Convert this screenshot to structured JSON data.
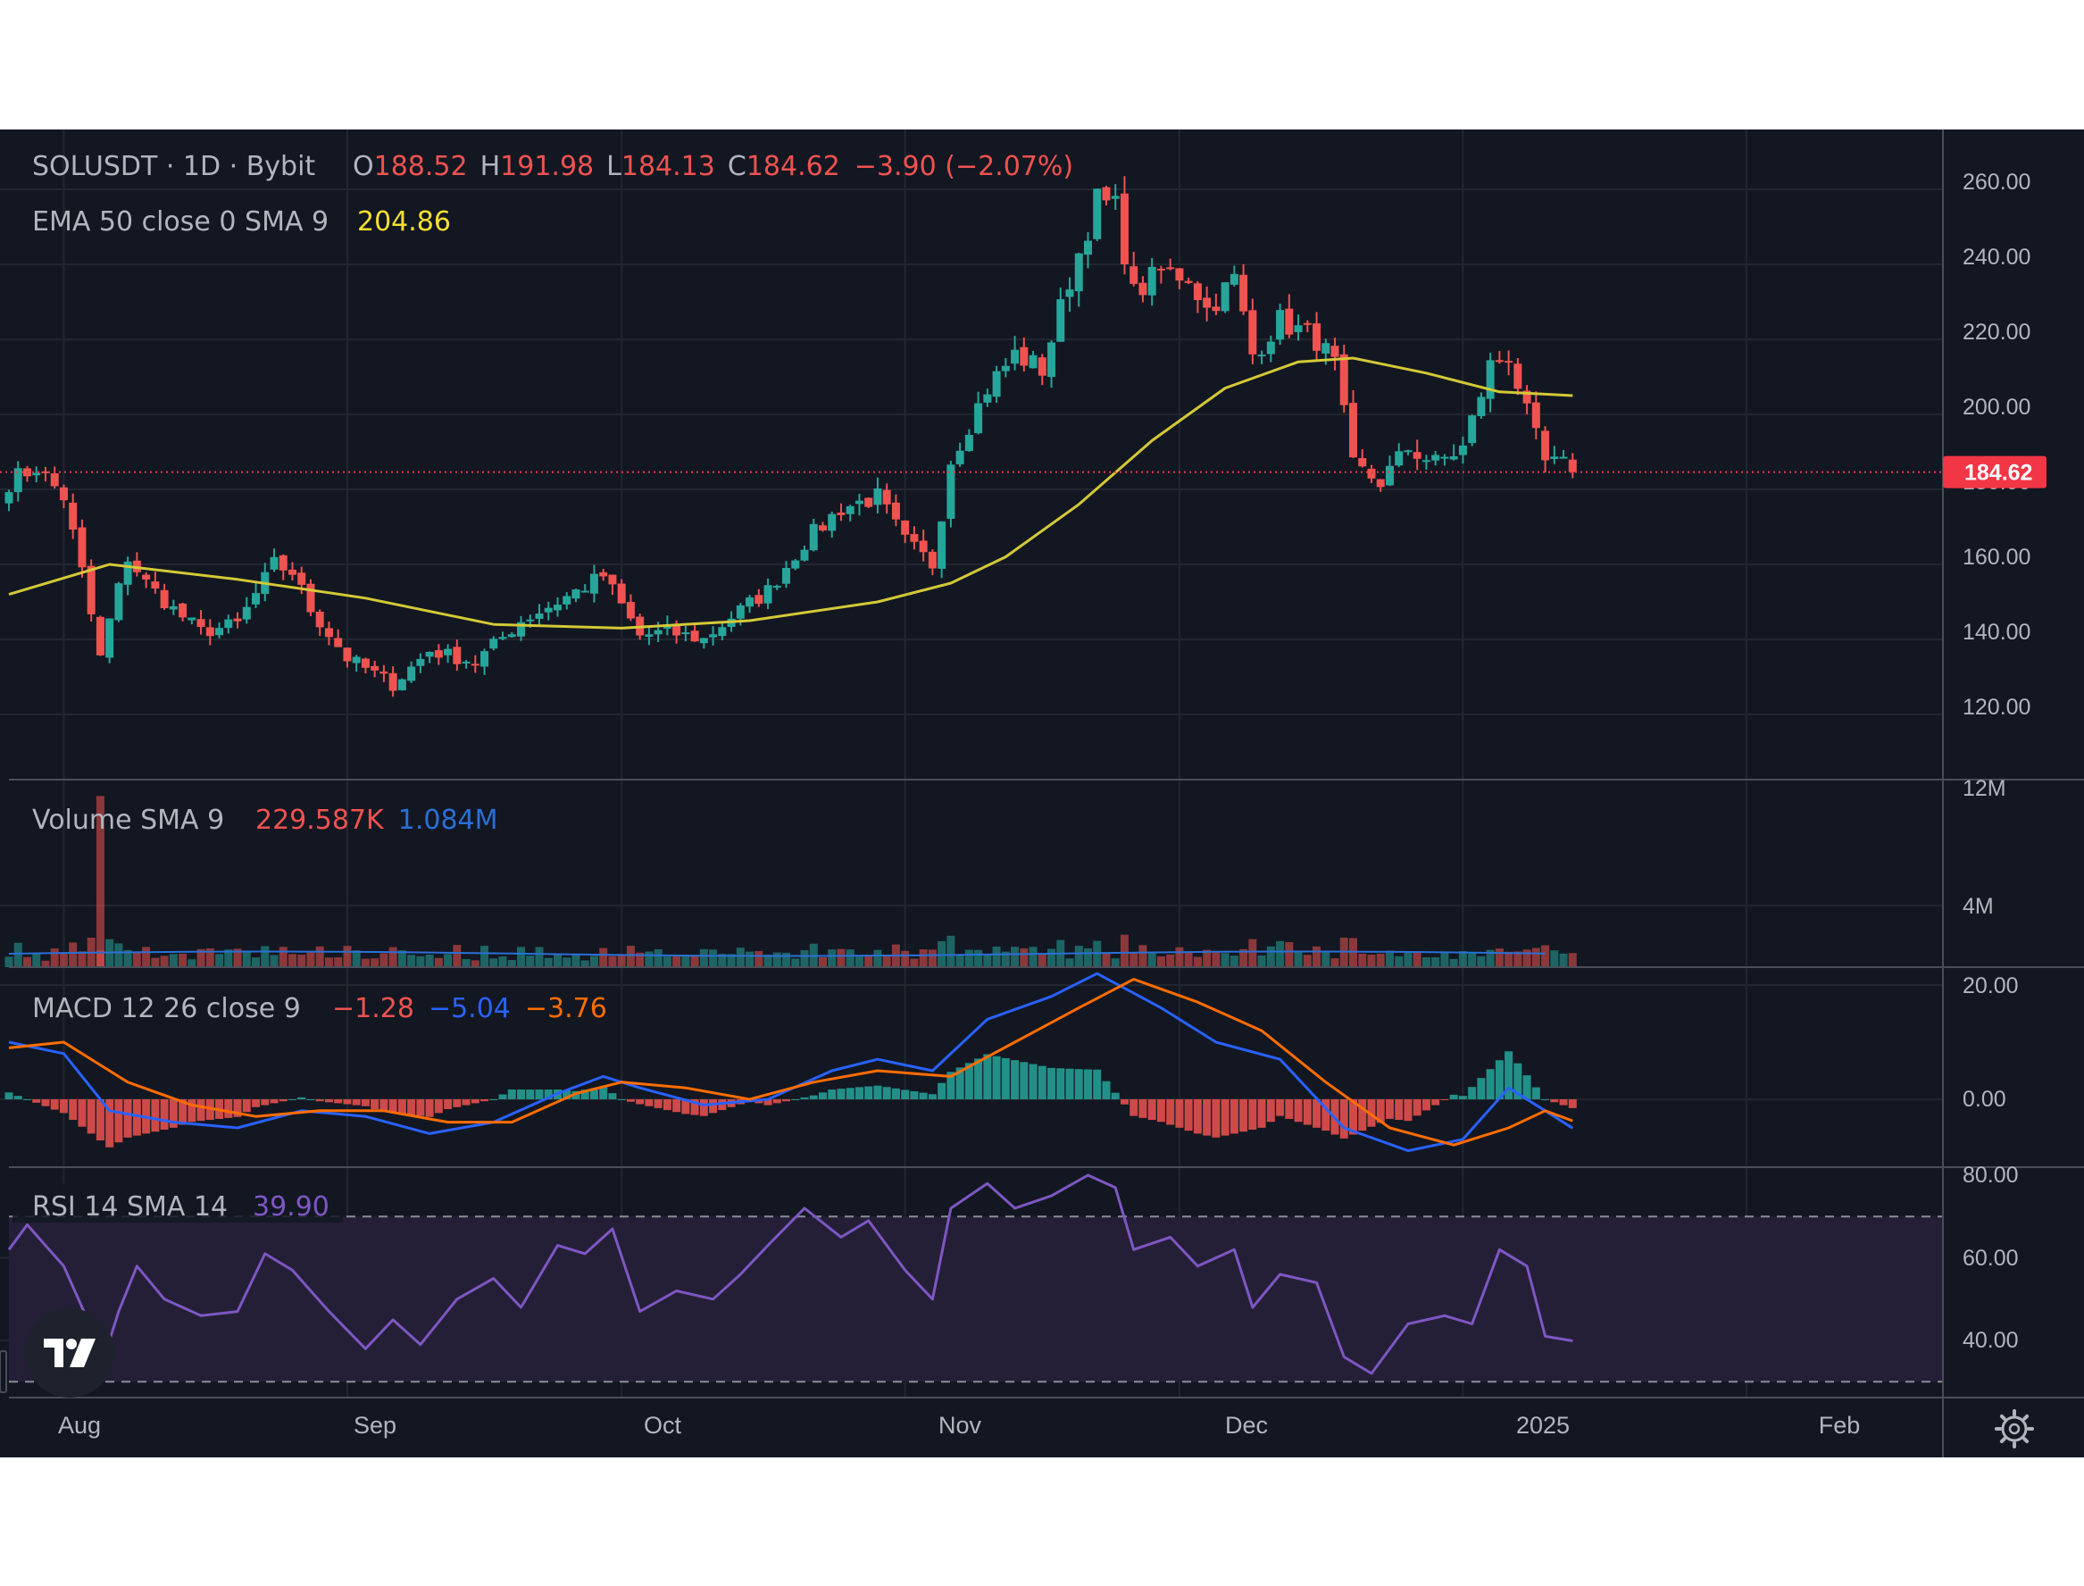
{
  "colors": {
    "background": "#131722",
    "grid": "#22262f",
    "separator": "#4a4e59",
    "axis_text": "#b2b5be",
    "label_text": "#b2b5be",
    "up": "#26a69a",
    "down": "#ef5350",
    "ema": "#d4c937",
    "ema_value": "#f5e02f",
    "volume_sma": "#2a6fd6",
    "macd_line": "#2962ff",
    "signal_line": "#ff6d00",
    "rsi_line": "#7e57c2",
    "rsi_band": "#241f37",
    "price_tag": "#f23645",
    "price_tag_text": "#ffffff"
  },
  "header": {
    "symbol_label": "SOLUSDT · 1D · Bybit",
    "open_prefix": "O",
    "open_value": "188.52",
    "high_prefix": "H",
    "high_value": "191.98",
    "low_prefix": "L",
    "low_value": "184.13",
    "close_prefix": "C",
    "close_value": "184.62",
    "change_text": "−3.90 (−2.07%)"
  },
  "ema_legend": {
    "label": "EMA 50 close 0 SMA 9",
    "value": "204.86"
  },
  "volume_legend": {
    "label": "Volume SMA 9",
    "value1": "229.587K",
    "value2": "1.084M"
  },
  "macd_legend": {
    "label": "MACD 12 26 close 9",
    "value1": "−1.28",
    "value2": "−5.04",
    "value3": "−3.76"
  },
  "rsi_legend": {
    "label": "RSI 14 SMA 14",
    "value": "39.90"
  },
  "price_axis_ticks": [
    "260.00",
    "240.00",
    "220.00",
    "200.00",
    "180.00",
    "160.00",
    "140.00",
    "120.00"
  ],
  "volume_axis_ticks": [
    "12M",
    "4M"
  ],
  "macd_axis_ticks": [
    "20.00",
    "0.00"
  ],
  "rsi_axis_ticks": [
    "80.00",
    "60.00",
    "40.00"
  ],
  "last_price_tag": "184.62",
  "time_axis_labels": [
    "Aug",
    "Sep",
    "Oct",
    "Nov",
    "Dec",
    "2025",
    "Feb"
  ],
  "logo_icon": "tradingview-logo-icon",
  "settings_icon": "gear-icon",
  "chart_data": {
    "type": "candlestick",
    "symbol": "SOLUSDT",
    "interval": "1D",
    "exchange": "Bybit",
    "ylim": [
      110,
      265
    ],
    "x_range": [
      "2024-07-26",
      "2025-02-18"
    ],
    "anchors": [
      [
        "2024-07-26",
        182
      ],
      [
        "2024-07-29",
        186
      ],
      [
        "2024-08-01",
        178
      ],
      [
        "2024-08-03",
        158
      ],
      [
        "2024-08-05",
        135
      ],
      [
        "2024-08-06",
        145
      ],
      [
        "2024-08-08",
        162
      ],
      [
        "2024-08-10",
        155
      ],
      [
        "2024-08-13",
        148
      ],
      [
        "2024-08-16",
        142
      ],
      [
        "2024-08-20",
        144
      ],
      [
        "2024-08-24",
        160
      ],
      [
        "2024-08-26",
        158
      ],
      [
        "2024-08-28",
        148
      ],
      [
        "2024-09-01",
        135
      ],
      [
        "2024-09-06",
        128
      ],
      [
        "2024-09-10",
        137
      ],
      [
        "2024-09-15",
        134
      ],
      [
        "2024-09-20",
        145
      ],
      [
        "2024-09-24",
        150
      ],
      [
        "2024-09-29",
        157
      ],
      [
        "2024-10-03",
        141
      ],
      [
        "2024-10-06",
        142
      ],
      [
        "2024-10-10",
        140
      ],
      [
        "2024-10-13",
        146
      ],
      [
        "2024-10-17",
        153
      ],
      [
        "2024-10-21",
        166
      ],
      [
        "2024-10-25",
        175
      ],
      [
        "2024-10-29",
        178
      ],
      [
        "2024-11-01",
        166
      ],
      [
        "2024-11-04",
        160
      ],
      [
        "2024-11-06",
        188
      ],
      [
        "2024-11-10",
        207
      ],
      [
        "2024-11-13",
        216
      ],
      [
        "2024-11-16",
        212
      ],
      [
        "2024-11-19",
        236
      ],
      [
        "2024-11-22",
        257
      ],
      [
        "2024-11-24",
        255
      ],
      [
        "2024-11-26",
        232
      ],
      [
        "2024-11-29",
        238
      ],
      [
        "2024-12-02",
        237
      ],
      [
        "2024-12-04",
        228
      ],
      [
        "2024-12-07",
        236
      ],
      [
        "2024-12-09",
        216
      ],
      [
        "2024-12-12",
        225
      ],
      [
        "2024-12-16",
        220
      ],
      [
        "2024-12-18",
        213
      ],
      [
        "2024-12-20",
        186
      ],
      [
        "2024-12-23",
        182
      ],
      [
        "2024-12-26",
        191
      ],
      [
        "2024-12-29",
        187
      ],
      [
        "2025-01-01",
        191
      ],
      [
        "2025-01-04",
        213
      ],
      [
        "2025-01-06",
        216
      ],
      [
        "2025-01-08",
        200
      ],
      [
        "2025-01-10",
        187
      ],
      [
        "2025-01-13",
        186
      ]
    ],
    "ema50": [
      [
        "2024-07-26",
        152
      ],
      [
        "2024-08-06",
        160
      ],
      [
        "2024-08-20",
        156
      ],
      [
        "2024-09-03",
        151
      ],
      [
        "2024-09-17",
        144
      ],
      [
        "2024-10-01",
        143
      ],
      [
        "2024-10-15",
        145
      ],
      [
        "2024-10-29",
        150
      ],
      [
        "2024-11-06",
        155
      ],
      [
        "2024-11-12",
        162
      ],
      [
        "2024-11-20",
        176
      ],
      [
        "2024-11-28",
        193
      ],
      [
        "2024-12-06",
        207
      ],
      [
        "2024-12-14",
        214
      ],
      [
        "2024-12-20",
        215
      ],
      [
        "2024-12-28",
        211
      ],
      [
        "2025-01-05",
        206
      ],
      [
        "2025-01-13",
        205
      ]
    ],
    "last_close": 184.62,
    "volume_scale_max": 12000000,
    "macd_ylim": [
      -10,
      22
    ],
    "macd_line": [
      [
        "2024-07-26",
        10
      ],
      [
        "2024-08-01",
        8
      ],
      [
        "2024-08-06",
        -2
      ],
      [
        "2024-08-13",
        -4
      ],
      [
        "2024-08-20",
        -5
      ],
      [
        "2024-08-27",
        -2
      ],
      [
        "2024-09-03",
        -3
      ],
      [
        "2024-09-10",
        -6
      ],
      [
        "2024-09-17",
        -4
      ],
      [
        "2024-09-24",
        1
      ],
      [
        "2024-09-29",
        4
      ],
      [
        "2024-10-03",
        2
      ],
      [
        "2024-10-10",
        -1
      ],
      [
        "2024-10-17",
        0
      ],
      [
        "2024-10-24",
        5
      ],
      [
        "2024-10-29",
        7
      ],
      [
        "2024-11-04",
        5
      ],
      [
        "2024-11-10",
        14
      ],
      [
        "2024-11-17",
        18
      ],
      [
        "2024-11-22",
        22
      ],
      [
        "2024-11-29",
        16
      ],
      [
        "2024-12-05",
        10
      ],
      [
        "2024-12-12",
        7
      ],
      [
        "2024-12-19",
        -5
      ],
      [
        "2024-12-26",
        -9
      ],
      [
        "2025-01-01",
        -7
      ],
      [
        "2025-01-06",
        2
      ],
      [
        "2025-01-10",
        -2
      ],
      [
        "2025-01-13",
        -5.04
      ]
    ],
    "signal_line": [
      [
        "2024-07-26",
        9
      ],
      [
        "2024-08-01",
        10
      ],
      [
        "2024-08-08",
        3
      ],
      [
        "2024-08-15",
        -1
      ],
      [
        "2024-08-22",
        -3
      ],
      [
        "2024-08-29",
        -2
      ],
      [
        "2024-09-05",
        -2
      ],
      [
        "2024-09-12",
        -4
      ],
      [
        "2024-09-19",
        -4
      ],
      [
        "2024-09-26",
        1
      ],
      [
        "2024-10-01",
        3
      ],
      [
        "2024-10-08",
        2
      ],
      [
        "2024-10-15",
        0
      ],
      [
        "2024-10-22",
        3
      ],
      [
        "2024-10-29",
        5
      ],
      [
        "2024-11-06",
        4
      ],
      [
        "2024-11-13",
        10
      ],
      [
        "2024-11-20",
        16
      ],
      [
        "2024-11-26",
        21
      ],
      [
        "2024-12-03",
        17
      ],
      [
        "2024-12-10",
        12
      ],
      [
        "2024-12-17",
        3
      ],
      [
        "2024-12-24",
        -5
      ],
      [
        "2024-12-31",
        -8
      ],
      [
        "2025-01-06",
        -5
      ],
      [
        "2025-01-10",
        -2
      ],
      [
        "2025-01-13",
        -3.76
      ]
    ],
    "rsi_ylim": [
      25,
      82
    ],
    "rsi_bands": [
      70,
      30
    ],
    "rsi": [
      [
        "2024-07-26",
        62
      ],
      [
        "2024-07-28",
        68
      ],
      [
        "2024-08-01",
        58
      ],
      [
        "2024-08-04",
        43
      ],
      [
        "2024-08-05",
        33
      ],
      [
        "2024-08-07",
        47
      ],
      [
        "2024-08-09",
        58
      ],
      [
        "2024-08-12",
        50
      ],
      [
        "2024-08-16",
        46
      ],
      [
        "2024-08-20",
        47
      ],
      [
        "2024-08-23",
        61
      ],
      [
        "2024-08-26",
        57
      ],
      [
        "2024-08-30",
        47
      ],
      [
        "2024-09-03",
        38
      ],
      [
        "2024-09-06",
        45
      ],
      [
        "2024-09-09",
        39
      ],
      [
        "2024-09-13",
        50
      ],
      [
        "2024-09-17",
        55
      ],
      [
        "2024-09-20",
        48
      ],
      [
        "2024-09-24",
        63
      ],
      [
        "2024-09-27",
        61
      ],
      [
        "2024-09-30",
        67
      ],
      [
        "2024-10-03",
        47
      ],
      [
        "2024-10-07",
        52
      ],
      [
        "2024-10-11",
        50
      ],
      [
        "2024-10-14",
        56
      ],
      [
        "2024-10-17",
        63
      ],
      [
        "2024-10-21",
        72
      ],
      [
        "2024-10-25",
        65
      ],
      [
        "2024-10-28",
        69
      ],
      [
        "2024-11-01",
        57
      ],
      [
        "2024-11-04",
        50
      ],
      [
        "2024-11-06",
        72
      ],
      [
        "2024-11-10",
        78
      ],
      [
        "2024-11-13",
        72
      ],
      [
        "2024-11-17",
        75
      ],
      [
        "2024-11-21",
        80
      ],
      [
        "2024-11-24",
        77
      ],
      [
        "2024-11-26",
        62
      ],
      [
        "2024-11-30",
        65
      ],
      [
        "2024-12-03",
        58
      ],
      [
        "2024-12-07",
        62
      ],
      [
        "2024-12-09",
        48
      ],
      [
        "2024-12-12",
        56
      ],
      [
        "2024-12-16",
        54
      ],
      [
        "2024-12-19",
        36
      ],
      [
        "2024-12-22",
        32
      ],
      [
        "2024-12-26",
        44
      ],
      [
        "2024-12-30",
        46
      ],
      [
        "2025-01-02",
        44
      ],
      [
        "2025-01-05",
        62
      ],
      [
        "2025-01-08",
        58
      ],
      [
        "2025-01-10",
        41
      ],
      [
        "2025-01-13",
        39.9
      ]
    ]
  }
}
